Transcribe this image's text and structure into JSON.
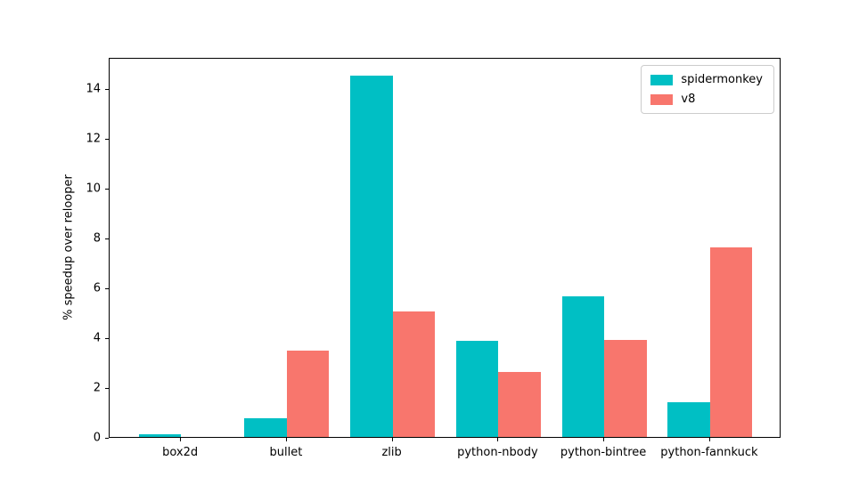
{
  "figure": {
    "background_color": "#ffffff",
    "text_color": "#000000"
  },
  "chart_data": {
    "type": "bar",
    "title": "",
    "xlabel": "",
    "ylabel": "% speedup over relooper",
    "categories": [
      "box2d",
      "bullet",
      "zlib",
      "python-nbody",
      "python-bintree",
      "python-fannkuck"
    ],
    "series": [
      {
        "name": "spidermonkey",
        "color": "#00BFC4",
        "values": [
          0.1,
          0.75,
          14.5,
          3.85,
          5.65,
          1.4
        ]
      },
      {
        "name": "v8",
        "color": "#F8766D",
        "values": [
          0,
          3.45,
          5.05,
          2.6,
          3.9,
          7.6
        ]
      }
    ],
    "y_ticks": [
      0,
      2,
      4,
      6,
      8,
      10,
      12,
      14
    ],
    "ylim": [
      0,
      15.25
    ],
    "grid": false,
    "legend_position": "upper right",
    "bar_group_width": 0.8
  }
}
